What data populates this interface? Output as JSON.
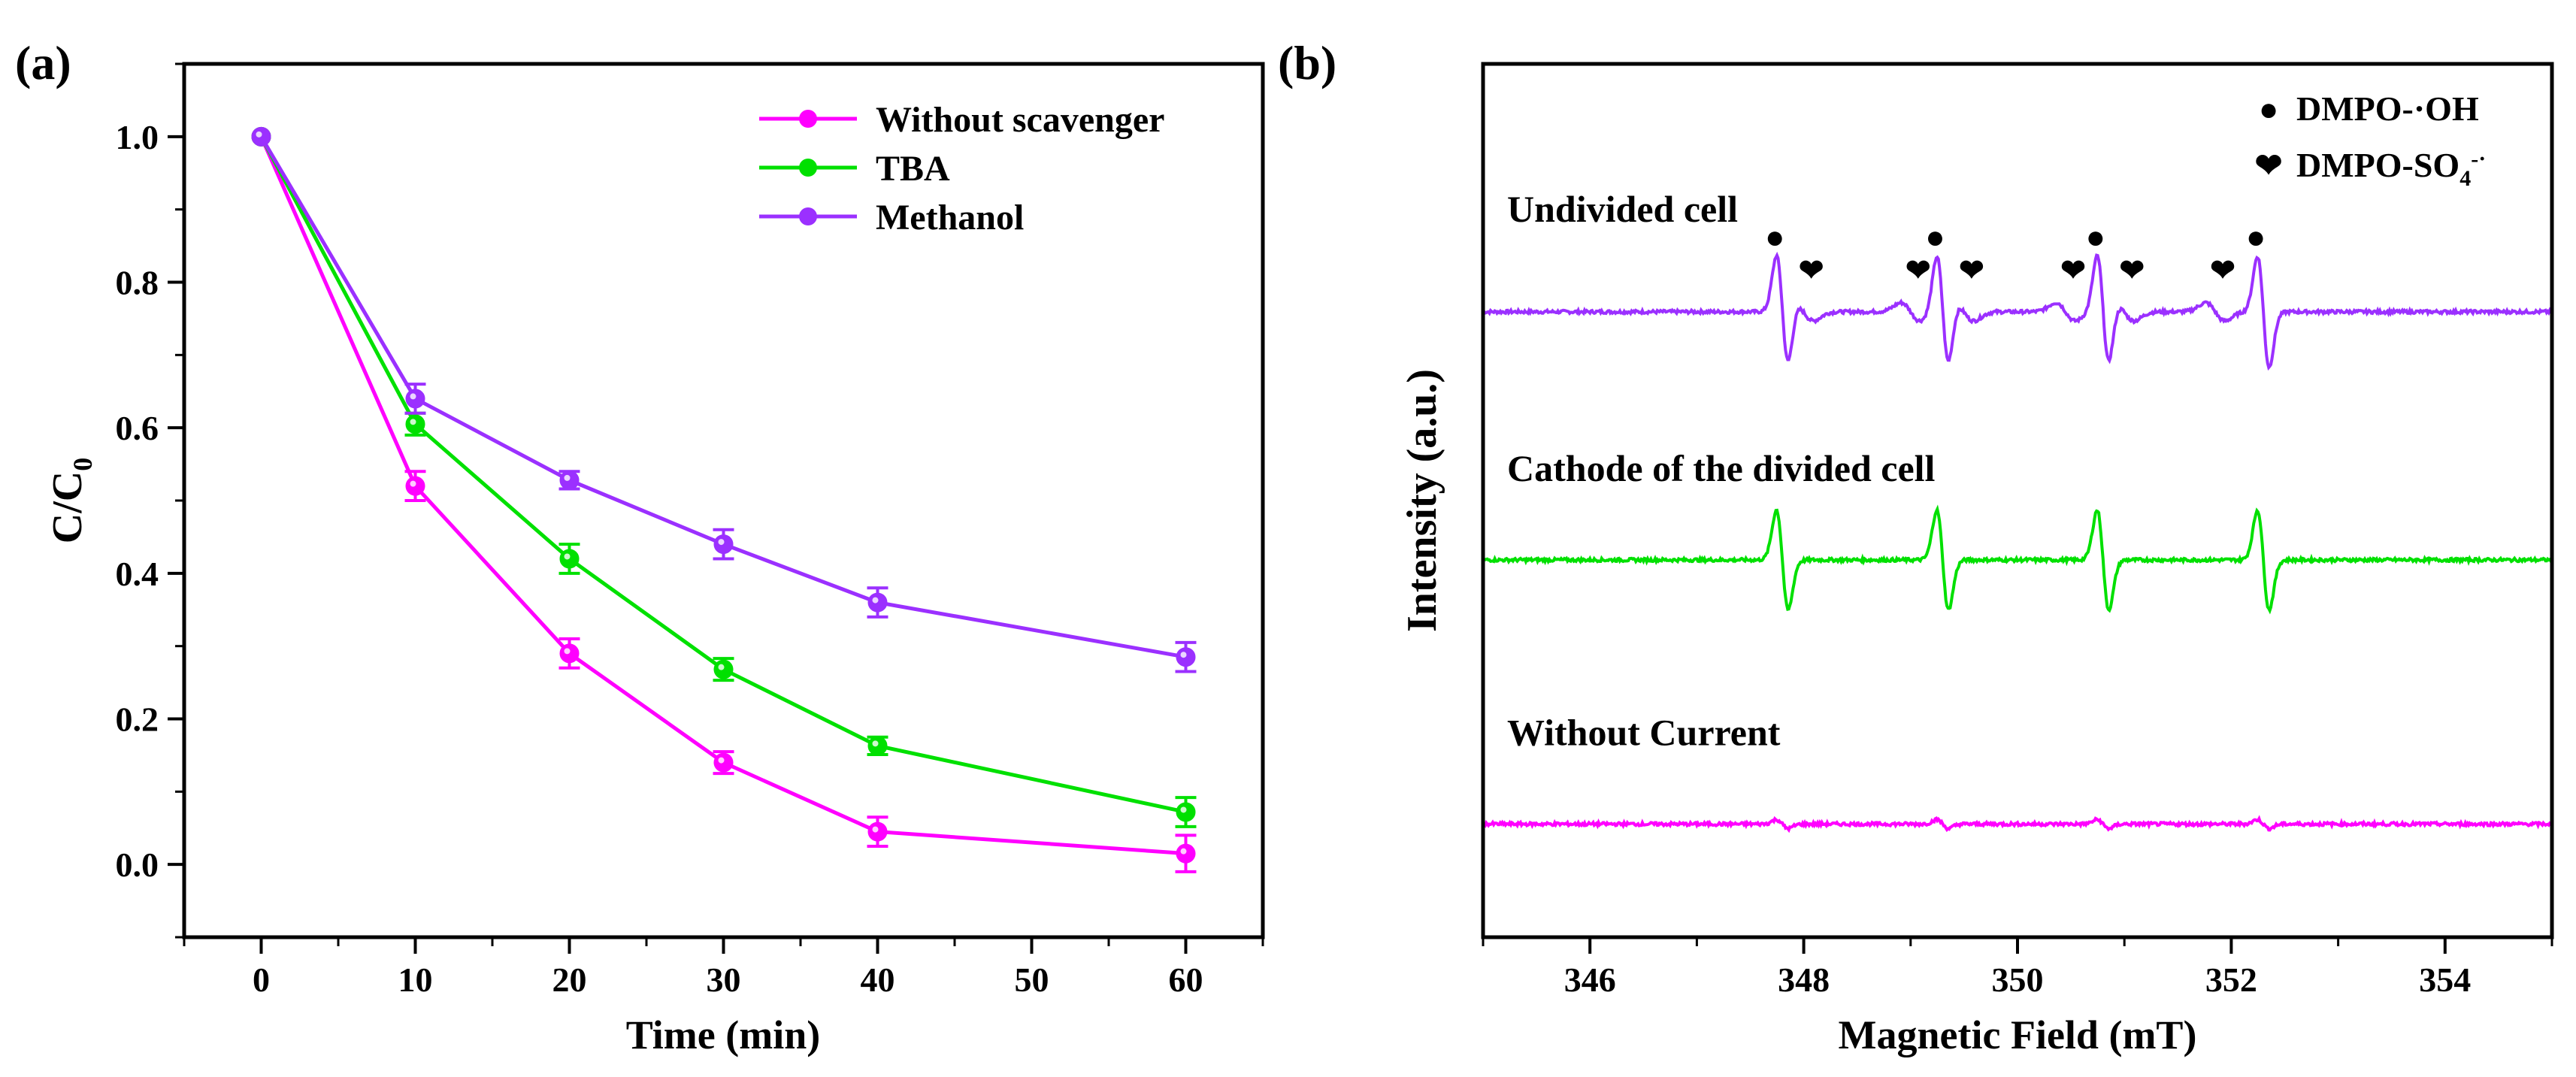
{
  "panel_a": {
    "label": "(a)",
    "chart_data": {
      "type": "line",
      "xlabel": "Time (min)",
      "ylabel_main": "C/C",
      "ylabel_sub": "0",
      "xlim": [
        -5,
        65
      ],
      "ylim": [
        -0.1,
        1.1
      ],
      "xticks": [
        0,
        10,
        20,
        30,
        40,
        50,
        60
      ],
      "yticks": [
        0.0,
        0.2,
        0.4,
        0.6,
        0.8,
        1.0
      ],
      "ytick_labels": [
        "0.0",
        "0.2",
        "0.4",
        "0.6",
        "0.8",
        "1.0"
      ],
      "x": [
        0,
        10,
        20,
        30,
        40,
        60
      ],
      "legend_position": "top-right",
      "series": [
        {
          "name": "Without scavenger",
          "color": "#ff00ff",
          "values": [
            1.0,
            0.52,
            0.29,
            0.14,
            0.045,
            0.015
          ],
          "errors": [
            0.0,
            0.02,
            0.02,
            0.015,
            0.02,
            0.025
          ]
        },
        {
          "name": "TBA",
          "color": "#00e000",
          "values": [
            1.0,
            0.605,
            0.42,
            0.268,
            0.163,
            0.072
          ],
          "errors": [
            0.0,
            0.015,
            0.02,
            0.015,
            0.012,
            0.02
          ]
        },
        {
          "name": "Methanol",
          "color": "#9b30ff",
          "values": [
            1.0,
            0.64,
            0.528,
            0.44,
            0.36,
            0.285
          ],
          "errors": [
            0.0,
            0.02,
            0.012,
            0.02,
            0.02,
            0.02
          ]
        }
      ]
    }
  },
  "panel_b": {
    "label": "(b)",
    "chart_data": {
      "type": "line",
      "xlabel": "Magnetic Field (mT)",
      "ylabel": "Intensity (a.u.)",
      "xlim": [
        345,
        355
      ],
      "xticks": [
        346,
        348,
        350,
        352,
        354
      ],
      "legend_position": "top-right",
      "legend": [
        {
          "marker": "●",
          "text": "DMPO-·OH",
          "text_main": "DMPO-·OH",
          "text_sub": "",
          "text_sup": ""
        },
        {
          "marker": "❤",
          "text": "DMPO-SO4-·",
          "text_main": "DMPO-SO",
          "text_sub": "4",
          "text_sup": "-·"
        }
      ],
      "series": [
        {
          "name": "Undivided cell",
          "color": "#9b30ff",
          "baseline": 0.31,
          "oh_amp": 1.0,
          "so4_amp": 0.45
        },
        {
          "name": "Cathode of  the divided cell",
          "color": "#00e000",
          "baseline": 0.0,
          "oh_amp": 0.9,
          "so4_amp": 0.0
        },
        {
          "name": "Without Current",
          "color": "#ff00ff",
          "baseline": -0.33,
          "oh_amp": 0.08,
          "so4_amp": 0.0
        }
      ],
      "oh_line_centers": [
        347.8,
        349.3,
        350.8,
        352.3
      ],
      "so4_line_centers": [
        348.0,
        349.0,
        349.5,
        350.45,
        351.0,
        351.85
      ]
    }
  }
}
